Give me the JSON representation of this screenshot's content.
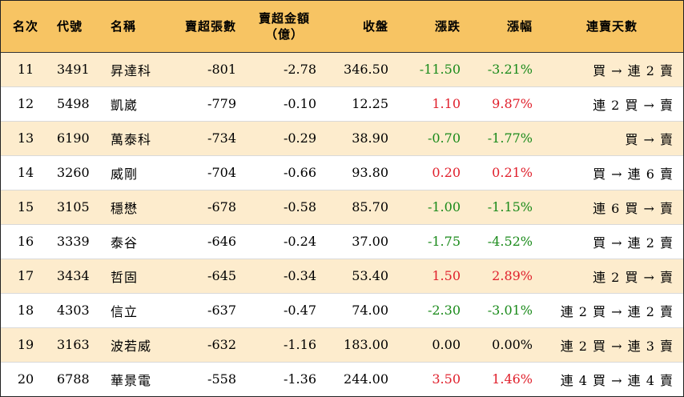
{
  "colors": {
    "header_bg": "#f7c463",
    "odd_row_bg": "#fdeccd",
    "up": "#e0202c",
    "down": "#1a8a1a"
  },
  "headers": {
    "rank": "名次",
    "code": "代號",
    "name": "名稱",
    "net_sell_lots": "賣超張數",
    "net_sell_amount_line1": "賣超金額",
    "net_sell_amount_line2": "（億）",
    "close": "收盤",
    "change": "漲跌",
    "change_pct": "漲幅",
    "streak": "連賣天數"
  },
  "rows": [
    {
      "rank": "11",
      "code": "3491",
      "name": "昇達科",
      "lots": "-801",
      "amount": "-2.78",
      "close": "346.50",
      "change": "-11.50",
      "pct": "-3.21%",
      "dir": "down",
      "streak": "買 → 連 2 賣"
    },
    {
      "rank": "12",
      "code": "5498",
      "name": "凱崴",
      "lots": "-779",
      "amount": "-0.10",
      "close": "12.25",
      "change": "1.10",
      "pct": "9.87%",
      "dir": "up",
      "streak": "連 2 買 → 賣"
    },
    {
      "rank": "13",
      "code": "6190",
      "name": "萬泰科",
      "lots": "-734",
      "amount": "-0.29",
      "close": "38.90",
      "change": "-0.70",
      "pct": "-1.77%",
      "dir": "down",
      "streak": "買 → 賣"
    },
    {
      "rank": "14",
      "code": "3260",
      "name": "威剛",
      "lots": "-704",
      "amount": "-0.66",
      "close": "93.80",
      "change": "0.20",
      "pct": "0.21%",
      "dir": "up",
      "streak": "買 → 連 6 賣"
    },
    {
      "rank": "15",
      "code": "3105",
      "name": "穩懋",
      "lots": "-678",
      "amount": "-0.58",
      "close": "85.70",
      "change": "-1.00",
      "pct": "-1.15%",
      "dir": "down",
      "streak": "連 6 買 → 賣"
    },
    {
      "rank": "16",
      "code": "3339",
      "name": "泰谷",
      "lots": "-646",
      "amount": "-0.24",
      "close": "37.00",
      "change": "-1.75",
      "pct": "-4.52%",
      "dir": "down",
      "streak": "買 → 連 2 賣"
    },
    {
      "rank": "17",
      "code": "3434",
      "name": "哲固",
      "lots": "-645",
      "amount": "-0.34",
      "close": "53.40",
      "change": "1.50",
      "pct": "2.89%",
      "dir": "up",
      "streak": "連 2 買 → 賣"
    },
    {
      "rank": "18",
      "code": "4303",
      "name": "信立",
      "lots": "-637",
      "amount": "-0.47",
      "close": "74.00",
      "change": "-2.30",
      "pct": "-3.01%",
      "dir": "down",
      "streak": "連 2 買 → 連 2 賣"
    },
    {
      "rank": "19",
      "code": "3163",
      "name": "波若威",
      "lots": "-632",
      "amount": "-1.16",
      "close": "183.00",
      "change": "0.00",
      "pct": "0.00%",
      "dir": "flat",
      "streak": "連 2 買 → 連 3 賣"
    },
    {
      "rank": "20",
      "code": "6788",
      "name": "華景電",
      "lots": "-558",
      "amount": "-1.36",
      "close": "244.00",
      "change": "3.50",
      "pct": "1.46%",
      "dir": "up",
      "streak": "連 4 買 → 連 4 賣"
    }
  ]
}
